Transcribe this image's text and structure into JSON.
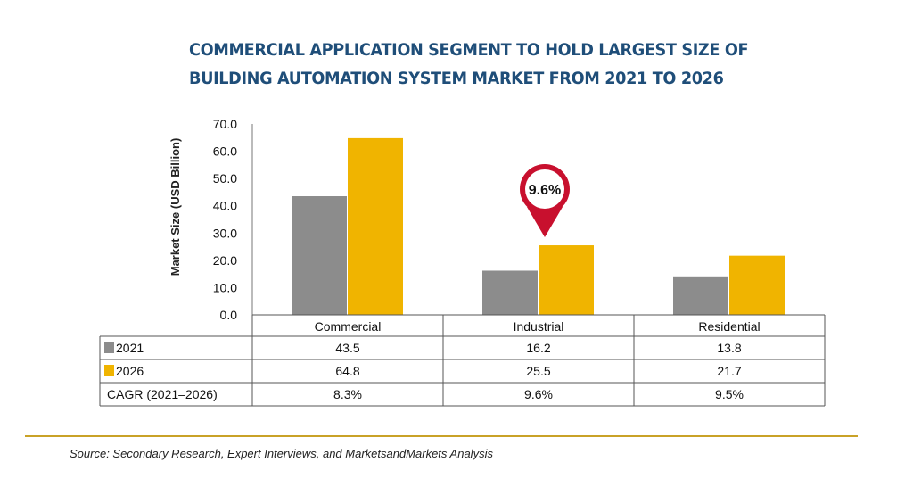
{
  "title": "COMMERCIAL APPLICATION SEGMENT TO HOLD LARGEST SIZE OF BUILDING AUTOMATION SYSTEM MARKET FROM 2021 TO 2026",
  "source": "Source: Secondary Research, Expert Interviews, and MarketsandMarkets Analysis",
  "colors": {
    "2021": "#8c8c8c",
    "2026": "#f0b400",
    "marker": "#c8102e"
  },
  "chart_data": {
    "type": "bar",
    "categories": [
      "Commercial",
      "Industrial",
      "Residential"
    ],
    "series": [
      {
        "name": "2021",
        "values": [
          43.5,
          16.2,
          13.8
        ]
      },
      {
        "name": "2026",
        "values": [
          64.8,
          25.5,
          21.7
        ]
      }
    ],
    "ylabel": "Market Size (USD Billion)",
    "ylim": [
      0,
      70
    ],
    "yticks": [
      "0.0",
      "10.0",
      "20.0",
      "30.0",
      "40.0",
      "50.0",
      "60.0",
      "70.0"
    ],
    "table": {
      "rows": [
        {
          "label": "2021",
          "cells": [
            "43.5",
            "16.2",
            "13.8"
          ]
        },
        {
          "label": "2026",
          "cells": [
            "64.8",
            "25.5",
            "21.7"
          ]
        },
        {
          "label": "CAGR (2021–2026)",
          "cells": [
            "8.3%",
            "9.6%",
            "9.5%"
          ]
        }
      ]
    },
    "highlight": {
      "category": "Industrial",
      "label": "9.6%"
    },
    "grid": false
  }
}
